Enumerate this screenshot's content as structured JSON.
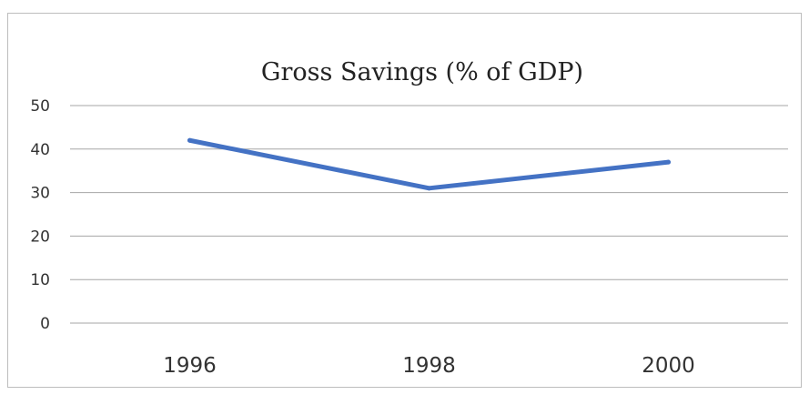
{
  "chart_data": {
    "type": "line",
    "title": "Gross Savings (% of GDP)",
    "categories": [
      "1996",
      "1998",
      "2000"
    ],
    "series": [
      {
        "values": [
          42,
          31,
          37
        ]
      }
    ],
    "ylim": [
      0,
      50
    ],
    "yticks": [
      "0",
      "10",
      "20",
      "30",
      "40",
      "50"
    ],
    "grid": true,
    "legend": "none",
    "colors": {
      "line": "#4472c4",
      "grid": "#a6a6a6",
      "axis": "#a6a6a6"
    }
  }
}
